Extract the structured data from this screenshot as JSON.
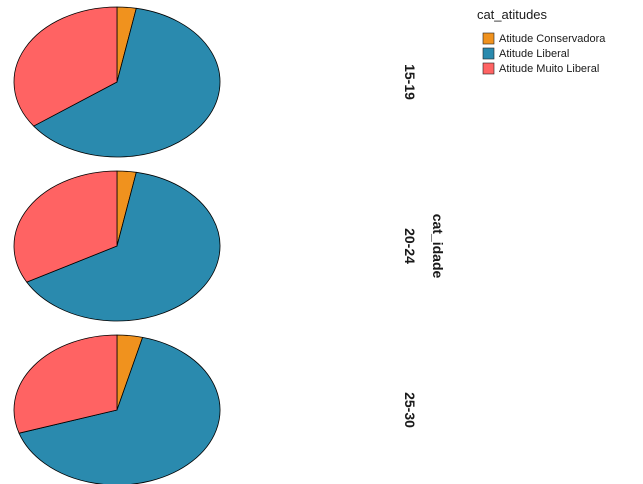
{
  "chart_data": {
    "type": "pie",
    "legend": {
      "title": "cat_atitudes",
      "position": "top-right",
      "entries": [
        {
          "label": "Atitude Conservadora",
          "color": "#F0921E"
        },
        {
          "label": "Atitude Liberal",
          "color": "#2A8AAE"
        },
        {
          "label": "Atitude Muito Liberal",
          "color": "#FF6363"
        }
      ]
    },
    "facet_title": "cat_idade",
    "facets": [
      {
        "label": "15-19",
        "values": [
          3,
          62,
          35
        ]
      },
      {
        "label": "20-24",
        "values": [
          3,
          64,
          33
        ]
      },
      {
        "label": "25-30",
        "values": [
          4,
          66,
          30
        ]
      }
    ]
  }
}
